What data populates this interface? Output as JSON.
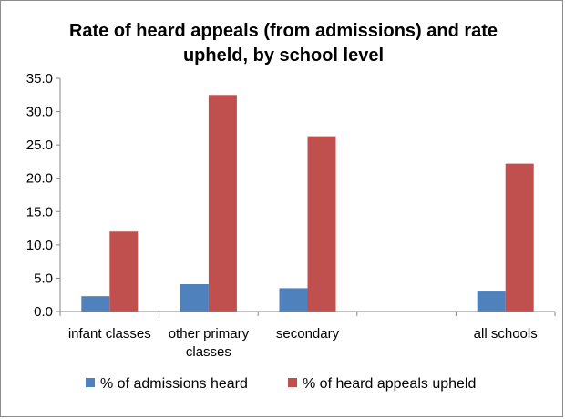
{
  "chart_data": {
    "type": "bar",
    "title_lines": [
      "Rate of heard appeals (from admissions) and rate",
      "upheld, by school level"
    ],
    "categories": [
      [
        "infant classes"
      ],
      [
        "other primary",
        "classes"
      ],
      [
        "secondary"
      ],
      [
        ""
      ],
      [
        "all schools"
      ]
    ],
    "series": [
      {
        "name": "% of admissions heard",
        "values": [
          2.3,
          4.1,
          3.5,
          null,
          3.0
        ]
      },
      {
        "name": "% of heard appeals upheld",
        "values": [
          12.0,
          32.5,
          26.3,
          null,
          22.2
        ]
      }
    ],
    "ylim": [
      0,
      35
    ],
    "yticks": [
      "0.0",
      "5.0",
      "10.0",
      "15.0",
      "20.0",
      "25.0",
      "30.0",
      "35.0"
    ],
    "grid": false,
    "legend_position": "bottom"
  },
  "colors": {
    "series": [
      "#4f81bd",
      "#c0504d"
    ],
    "axis": "#868686"
  }
}
